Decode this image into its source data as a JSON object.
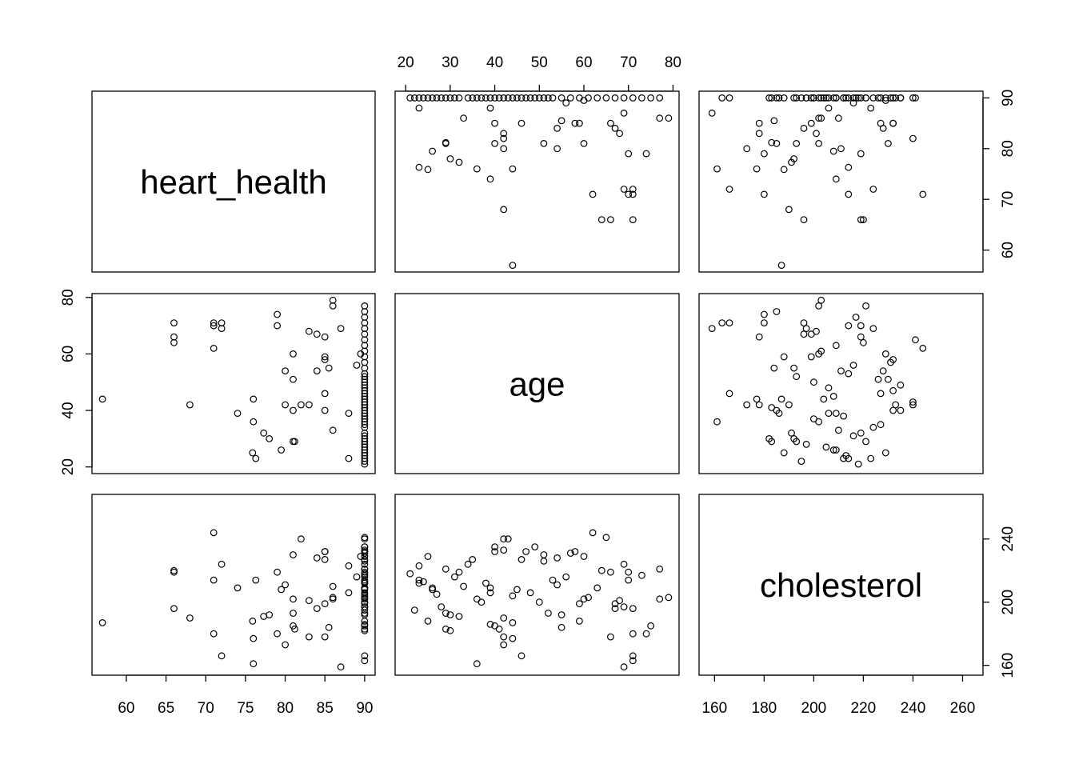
{
  "chart_data": {
    "type": "scatter",
    "variables": [
      "heart_health",
      "age",
      "cholesterol"
    ],
    "ranges": {
      "heart_health": [
        57.0,
        90.0
      ],
      "age": [
        20.0,
        79.0
      ],
      "cholesterol": [
        158.0,
        264.0
      ]
    },
    "ticks": {
      "heart_health": [
        60,
        65,
        70,
        75,
        80,
        85,
        90
      ],
      "age": [
        20,
        30,
        40,
        50,
        60,
        70,
        80
      ],
      "cholesterol": [
        160,
        180,
        200,
        220,
        240,
        260
      ]
    },
    "right_ticks": {
      "heart_health": [
        60,
        70,
        80,
        90
      ],
      "cholesterol": [
        160,
        200,
        240
      ]
    },
    "left_ticks": {
      "age": [
        20,
        40,
        60,
        80
      ]
    },
    "grid": false,
    "legend": "none",
    "data": {
      "heart_health": [
        90,
        90,
        88,
        90,
        90,
        90,
        90,
        86,
        90,
        90,
        90,
        90,
        90,
        90,
        90,
        90,
        90,
        90,
        90,
        90,
        90,
        90,
        90,
        90,
        90,
        90,
        90,
        90,
        90,
        90,
        90,
        90,
        90,
        90,
        90,
        90,
        90,
        90,
        90,
        90,
        90,
        90,
        90,
        90,
        90,
        90,
        76.3,
        75.9,
        79.5,
        81.2,
        78,
        77.3,
        74,
        81,
        83,
        82,
        80,
        68,
        57,
        76,
        85,
        81,
        89,
        85,
        85,
        81,
        71,
        66,
        85,
        84,
        83,
        87,
        72,
        71,
        79,
        66,
        79,
        86,
        86,
        88,
        85.5,
        72,
        80,
        89.5,
        66,
        71,
        76,
        81,
        85,
        84
      ],
      "age": [
        21,
        23,
        23,
        25,
        27,
        29,
        31,
        33,
        35,
        37,
        39,
        41,
        43,
        45,
        47,
        49,
        51,
        53,
        55,
        57,
        59,
        61,
        63,
        65,
        67,
        69,
        71,
        73,
        75,
        77,
        22,
        24,
        26,
        28,
        30,
        32,
        34,
        36,
        38,
        40,
        42,
        44,
        46,
        48,
        50,
        52,
        23,
        25,
        26,
        29,
        30,
        32,
        39,
        40,
        42,
        42,
        42,
        42,
        44,
        44,
        46,
        51,
        56,
        58,
        59,
        60,
        62,
        64,
        66,
        67,
        68,
        69,
        69,
        70,
        70,
        71,
        74,
        77,
        79,
        39,
        55,
        71,
        54,
        60,
        66,
        71,
        36,
        29,
        40,
        54
      ],
      "cholesterol": [
        218,
        212,
        223,
        229,
        205,
        221,
        216,
        210,
        227,
        200,
        186,
        183,
        240,
        208,
        232,
        235,
        226,
        214,
        192,
        231,
        188,
        203,
        209,
        241,
        199,
        197,
        163,
        217,
        185,
        221,
        195,
        213,
        209,
        197,
        182,
        219,
        224,
        202,
        212,
        235,
        233,
        204,
        166,
        206,
        200,
        193,
        214,
        188,
        208,
        183,
        192,
        191,
        209,
        185,
        178,
        240,
        173,
        190,
        187,
        177,
        227,
        230,
        216,
        232,
        199,
        202,
        244,
        220,
        178,
        196,
        201,
        159,
        224,
        214,
        219,
        196,
        180,
        202,
        203,
        206,
        184,
        166,
        211,
        229,
        219,
        180,
        161,
        193,
        232,
        228
      ]
    }
  }
}
